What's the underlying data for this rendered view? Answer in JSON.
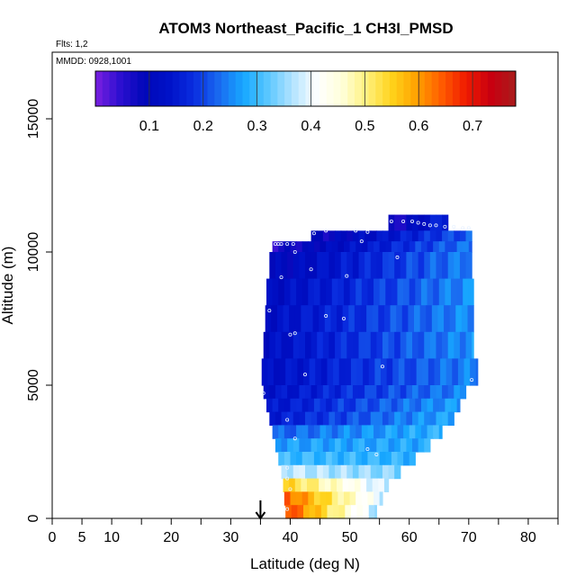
{
  "chart_data": {
    "type": "heatmap",
    "title": "ATOM3 Northeast_Pacific_1 CH3I_PMSD",
    "flights_label": "Flts: 1,2",
    "mmdd_label": "MMDD: 0928,1001",
    "xlabel": "Latitude (deg N)",
    "ylabel": "Altitude (m)",
    "xlim": [
      0,
      85
    ],
    "ylim": [
      0,
      17500
    ],
    "x_ticks": [
      0,
      5,
      10,
      20,
      30,
      40,
      50,
      60,
      70,
      80
    ],
    "x_tick_labels": [
      "0",
      "5",
      "10",
      "20",
      "30",
      "40",
      "50",
      "60",
      "70",
      "80"
    ],
    "x_minor_ticks": [
      15,
      25,
      35,
      45,
      55,
      65,
      75,
      85
    ],
    "y_ticks": [
      0,
      5000,
      10000,
      15000
    ],
    "y_tick_labels": [
      "0",
      "5000",
      "10000",
      "15000"
    ],
    "arrow_latitude": 35,
    "colorbar": {
      "range": [
        0,
        0.78
      ],
      "tick_values": [
        0.1,
        0.2,
        0.3,
        0.4,
        0.5,
        0.6,
        0.7
      ],
      "tick_labels": [
        "0.1",
        "0.2",
        "0.3",
        "0.4",
        "0.5",
        "0.6",
        "0.7"
      ],
      "colors": [
        "#7b1fe0",
        "#2c0fd0",
        "#0008b8",
        "#0012c8",
        "#0a2ee0",
        "#1a6af0",
        "#17a8ff",
        "#5cc8ff",
        "#b4e4ff",
        "#ffffff",
        "#ffffd8",
        "#fff07a",
        "#ffd21a",
        "#ffa000",
        "#ff5c00",
        "#f01a00",
        "#c80010",
        "#a81c1c"
      ]
    },
    "layers": [
      {
        "alt_min": 10800,
        "alt_max": 11400,
        "lat_min": 56.5,
        "lat_max": 66.5,
        "value_west": 0.05,
        "value_east": 0.18
      },
      {
        "alt_min": 10400,
        "alt_max": 10800,
        "lat_min": 43.5,
        "lat_max": 70.5,
        "value_west": 0.07,
        "value_east": 0.22
      },
      {
        "alt_min": 10000,
        "alt_max": 10400,
        "lat_min": 37,
        "lat_max": 70.5,
        "value_west": 0.06,
        "value_east": 0.24
      },
      {
        "alt_min": 9000,
        "alt_max": 10000,
        "lat_min": 36.5,
        "lat_max": 70.5,
        "value_west": 0.09,
        "value_east": 0.25
      },
      {
        "alt_min": 8000,
        "alt_max": 9000,
        "lat_min": 36,
        "lat_max": 70.8,
        "value_west": 0.11,
        "value_east": 0.26
      },
      {
        "alt_min": 7000,
        "alt_max": 8000,
        "lat_min": 35.8,
        "lat_max": 70.8,
        "value_west": 0.12,
        "value_east": 0.26
      },
      {
        "alt_min": 6000,
        "alt_max": 7000,
        "lat_min": 35.5,
        "lat_max": 70.8,
        "value_west": 0.12,
        "value_east": 0.26
      },
      {
        "alt_min": 5000,
        "alt_max": 6000,
        "lat_min": 35.2,
        "lat_max": 71.5,
        "value_west": 0.12,
        "value_east": 0.25
      },
      {
        "alt_min": 4500,
        "alt_max": 5000,
        "lat_min": 35.5,
        "lat_max": 69.5,
        "value_west": 0.13,
        "value_east": 0.25
      },
      {
        "alt_min": 4000,
        "alt_max": 4500,
        "lat_min": 36,
        "lat_max": 68.5,
        "value_west": 0.14,
        "value_east": 0.27
      },
      {
        "alt_min": 3500,
        "alt_max": 4000,
        "lat_min": 36.5,
        "lat_max": 67.5,
        "value_west": 0.15,
        "value_east": 0.28
      },
      {
        "alt_min": 3000,
        "alt_max": 3500,
        "lat_min": 37,
        "lat_max": 65.5,
        "value_west": 0.22,
        "value_east": 0.29
      },
      {
        "alt_min": 2500,
        "alt_max": 3000,
        "lat_min": 37.5,
        "lat_max": 63.5,
        "value_west": 0.27,
        "value_east": 0.28
      },
      {
        "alt_min": 2000,
        "alt_max": 2500,
        "lat_min": 38,
        "lat_max": 61,
        "value_west": 0.3,
        "value_east": 0.29
      },
      {
        "alt_min": 1500,
        "alt_max": 2000,
        "lat_min": 38.5,
        "lat_max": 58.5,
        "value_west": 0.38,
        "value_east": 0.34
      },
      {
        "alt_min": 1000,
        "alt_max": 1500,
        "lat_min": 38.8,
        "lat_max": 56.5,
        "value_west": 0.55,
        "value_east": 0.37
      },
      {
        "alt_min": 500,
        "alt_max": 1000,
        "lat_min": 39,
        "lat_max": 55.5,
        "value_west": 0.65,
        "value_east": 0.38
      },
      {
        "alt_min": 0,
        "alt_max": 500,
        "lat_min": 39.2,
        "lat_max": 54.5,
        "value_west": 0.67,
        "value_east": 0.36
      }
    ],
    "sample_points": [
      [
        57,
        11150
      ],
      [
        59,
        11150
      ],
      [
        60.5,
        11150
      ],
      [
        61.5,
        11100
      ],
      [
        62.5,
        11050
      ],
      [
        63.5,
        11000
      ],
      [
        64.5,
        11000
      ],
      [
        66,
        10950
      ],
      [
        67.5,
        10950
      ],
      [
        69,
        10900
      ],
      [
        70,
        10900
      ],
      [
        44,
        10700
      ],
      [
        46,
        10800
      ],
      [
        51,
        10800
      ],
      [
        53,
        10750
      ],
      [
        52,
        10400
      ],
      [
        37.5,
        10300
      ],
      [
        38,
        10300
      ],
      [
        38.5,
        10300
      ],
      [
        39.5,
        10300
      ],
      [
        40.5,
        10300
      ],
      [
        40.8,
        10000
      ],
      [
        58,
        9800
      ],
      [
        38.5,
        9050
      ],
      [
        43.5,
        9350
      ],
      [
        49.5,
        9100
      ],
      [
        36.5,
        7800
      ],
      [
        46,
        7600
      ],
      [
        49,
        7500
      ],
      [
        40,
        6900
      ],
      [
        40.8,
        6950
      ],
      [
        42.5,
        5400
      ],
      [
        55.5,
        5700
      ],
      [
        70.5,
        5200
      ],
      [
        35.5,
        4700
      ],
      [
        39.5,
        3700
      ],
      [
        40.8,
        3000
      ],
      [
        53,
        2600
      ],
      [
        54.5,
        2400
      ],
      [
        39.5,
        1900
      ],
      [
        39.5,
        1500
      ],
      [
        40,
        1100
      ],
      [
        39.5,
        350
      ]
    ]
  }
}
